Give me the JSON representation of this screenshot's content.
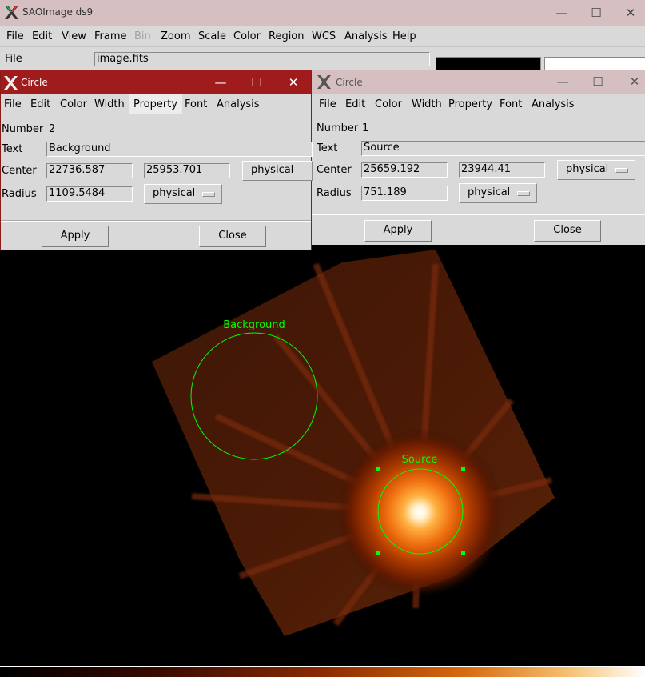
{
  "app": {
    "title": "SAOImage ds9",
    "menu": [
      "File",
      "Edit",
      "View",
      "Frame",
      "Bin",
      "Zoom",
      "Scale",
      "Color",
      "Region",
      "WCS",
      "Analysis",
      "Help"
    ],
    "disabled_menu": "Bin",
    "file_label": "File",
    "file_value": "image.fits"
  },
  "window_controls": {
    "minimize": "—",
    "maximize": "☐",
    "close": "✕"
  },
  "dialogs": {
    "background": {
      "title": "Circle",
      "menu": [
        "File",
        "Edit",
        "Color",
        "Width",
        "Property",
        "Font",
        "Analysis"
      ],
      "active_menu": "Property",
      "number_label": "Number",
      "number": "2",
      "text_label": "Text",
      "text": "Background",
      "center_label": "Center",
      "center_x": "22736.587",
      "center_y": "25953.701",
      "center_system": "physical",
      "radius_label": "Radius",
      "radius": "1109.5484",
      "radius_system": "physical",
      "apply": "Apply",
      "close": "Close"
    },
    "source": {
      "title": "Circle",
      "menu": [
        "File",
        "Edit",
        "Color",
        "Width",
        "Property",
        "Font",
        "Analysis"
      ],
      "number_label": "Number",
      "number": "1",
      "text_label": "Text",
      "text": "Source",
      "center_label": "Center",
      "center_x": "25659.192",
      "center_y": "23944.41",
      "center_system": "physical",
      "radius_label": "Radius",
      "radius": "751.189",
      "radius_system": "physical",
      "apply": "Apply",
      "close": "Close"
    }
  },
  "regions": {
    "background_label": "Background",
    "source_label": "Source",
    "color": "#00ff00"
  },
  "colors": {
    "active_title": "#a01c1c",
    "inactive_title": "#d5bfc1",
    "panel": "#d9d9d9",
    "region": "#00ff00"
  }
}
